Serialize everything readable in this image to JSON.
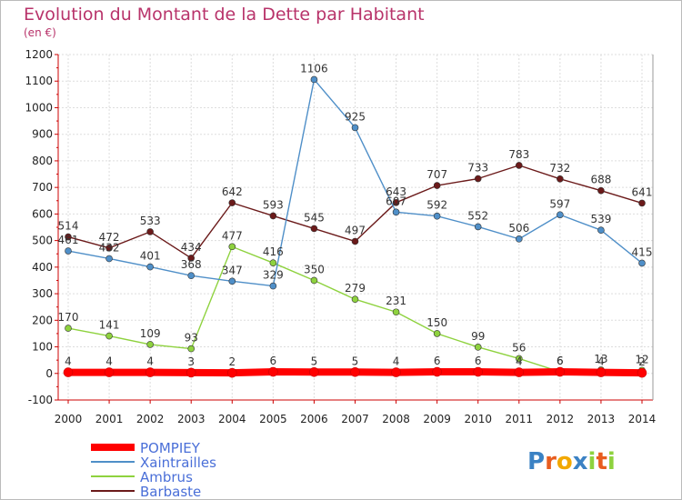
{
  "chart_data": {
    "type": "line",
    "title": "Evolution du Montant de la Dette par Habitant",
    "subtitle": "(en €)",
    "xlabel": "",
    "ylabel": "",
    "x": [
      "2000",
      "2001",
      "2002",
      "2003",
      "2004",
      "2005",
      "2006",
      "2007",
      "2008",
      "2009",
      "2010",
      "2011",
      "2012",
      "2013",
      "2014"
    ],
    "ylim": [
      -100,
      1200
    ],
    "yticks": [
      -100,
      0,
      100,
      200,
      300,
      400,
      500,
      600,
      700,
      800,
      900,
      1000,
      1100,
      1200
    ],
    "grid": true,
    "legend_position": "bottom-left",
    "series": [
      {
        "name": "POMPIEY",
        "color": "#ff0000",
        "values": [
          4,
          4,
          4,
          3,
          2,
          6,
          5,
          5,
          4,
          6,
          6,
          4,
          6,
          4,
          2
        ]
      },
      {
        "name": "Xaintrailles",
        "color": "#4f8fc8",
        "values": [
          461,
          432,
          401,
          368,
          347,
          329,
          1106,
          925,
          607,
          592,
          552,
          506,
          597,
          539,
          415
        ]
      },
      {
        "name": "Ambrus",
        "color": "#8ed23e",
        "values": [
          170,
          141,
          109,
          93,
          477,
          416,
          350,
          279,
          231,
          150,
          99,
          56,
          6,
          13,
          12
        ]
      },
      {
        "name": "Barbaste",
        "color": "#6b1a1a",
        "values": [
          514,
          472,
          533,
          434,
          642,
          593,
          545,
          497,
          643,
          707,
          733,
          783,
          732,
          688,
          641
        ]
      }
    ]
  },
  "logo": {
    "text": "Proxiti"
  }
}
